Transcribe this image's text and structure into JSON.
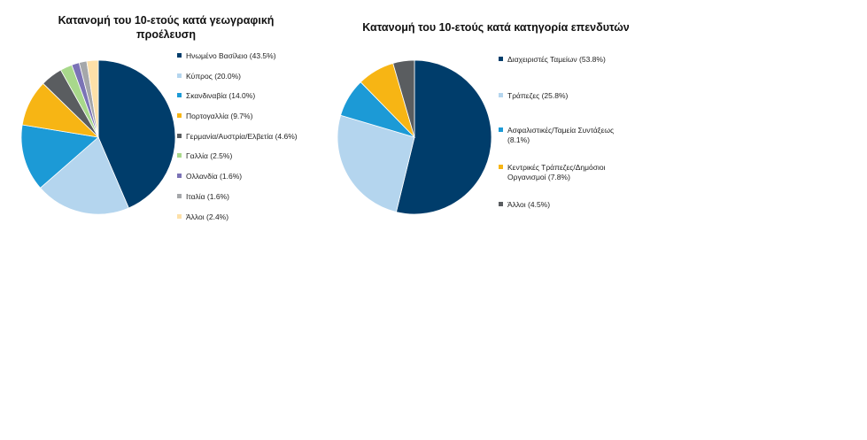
{
  "chart_data": [
    {
      "type": "pie",
      "title_line1": "Κατανομή του 10-ετούς κατά γεωγραφική",
      "title_line2": "προέλευση",
      "legend_position": "right",
      "slices": [
        {
          "label": "Ηνωμένο Βασίλειο (43.5%)",
          "value": 43.5,
          "color": "#003d6b"
        },
        {
          "label": "Κύπρος (20.0%)",
          "value": 20.0,
          "color": "#b4d5ee"
        },
        {
          "label": "Σκανδιναβία (14.0%)",
          "value": 14.0,
          "color": "#1c9ad6"
        },
        {
          "label": "Πορτογαλλία (9.7%)",
          "value": 9.7,
          "color": "#f7b514"
        },
        {
          "label": "Γερμανία/Αυστρία/Ελβετία (4.6%)",
          "value": 4.6,
          "color": "#5a5d60"
        },
        {
          "label": "Γαλλία (2.5%)",
          "value": 2.5,
          "color": "#a8d88b"
        },
        {
          "label": "Ολλανδία (1.6%)",
          "value": 1.6,
          "color": "#7b73b6"
        },
        {
          "label": "Ιταλία (1.6%)",
          "value": 1.6,
          "color": "#a5a7aa"
        },
        {
          "label": "Άλλοι (2.4%)",
          "value": 2.4,
          "color": "#fde0a8"
        }
      ]
    },
    {
      "type": "pie",
      "title_line1": "Κατανομή του 10-ετούς κατά κατηγορία επενδυτών",
      "title_line2": "",
      "legend_position": "right",
      "slices": [
        {
          "label": "Διαχειριστές Ταμείων  (53.8%)",
          "value": 53.8,
          "color": "#003d6b"
        },
        {
          "label": "Τράπεζες (25.8%)",
          "value": 25.8,
          "color": "#b4d5ee"
        },
        {
          "label": "Ασφαλιστικές/Ταμεία Συντάξεως (8.1%)",
          "value": 8.1,
          "color": "#1c9ad6"
        },
        {
          "label": "Κεντρικές Τράπεζες/Δημόσιοι Οργανισμοί (7.8%)",
          "value": 7.8,
          "color": "#f7b514"
        },
        {
          "label": "Άλλοι (4.5%)",
          "value": 4.5,
          "color": "#5a5d60"
        }
      ]
    }
  ]
}
